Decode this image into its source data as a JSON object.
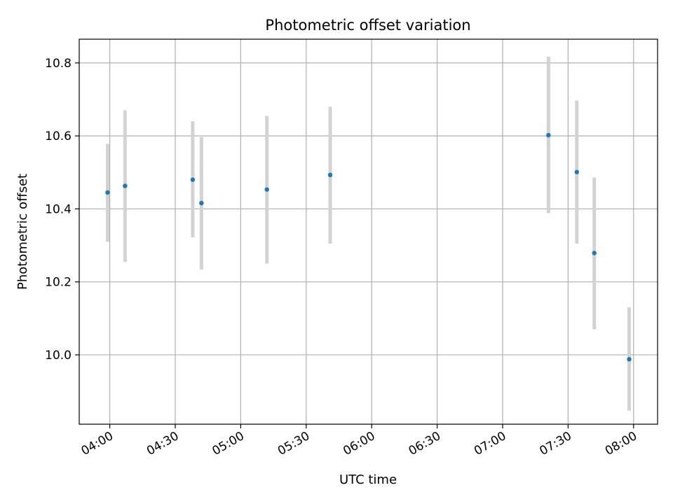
{
  "chart_data": {
    "type": "scatter",
    "title": "Photometric offset variation",
    "xlabel": "UTC time",
    "ylabel": "Photometric offset",
    "grid": true,
    "x_ticks": [
      "04:00",
      "04:30",
      "05:00",
      "05:30",
      "06:00",
      "06:30",
      "07:00",
      "07:30",
      "08:00"
    ],
    "y_ticks": [
      "10.0",
      "10.2",
      "10.4",
      "10.6",
      "10.8"
    ],
    "xlim": [
      "03:46",
      "08:11"
    ],
    "ylim": [
      9.81,
      10.865
    ],
    "series": [
      {
        "marker_color": "#1f77b4",
        "errorbar_color": "#d3d3d3",
        "points": [
          {
            "x": "03:59",
            "y": 10.445,
            "yerr_low": 10.31,
            "yerr_high": 10.578
          },
          {
            "x": "04:07",
            "y": 10.463,
            "yerr_low": 10.255,
            "yerr_high": 10.67
          },
          {
            "x": "04:38",
            "y": 10.48,
            "yerr_low": 10.322,
            "yerr_high": 10.64
          },
          {
            "x": "04:42",
            "y": 10.416,
            "yerr_low": 10.234,
            "yerr_high": 10.597
          },
          {
            "x": "05:12",
            "y": 10.453,
            "yerr_low": 10.25,
            "yerr_high": 10.655
          },
          {
            "x": "05:41",
            "y": 10.493,
            "yerr_low": 10.305,
            "yerr_high": 10.68
          },
          {
            "x": "07:21",
            "y": 10.602,
            "yerr_low": 10.388,
            "yerr_high": 10.817
          },
          {
            "x": "07:34",
            "y": 10.501,
            "yerr_low": 10.305,
            "yerr_high": 10.697
          },
          {
            "x": "07:42",
            "y": 10.279,
            "yerr_low": 10.07,
            "yerr_high": 10.486
          },
          {
            "x": "07:58",
            "y": 9.988,
            "yerr_low": 9.847,
            "yerr_high": 10.13
          }
        ]
      }
    ]
  }
}
